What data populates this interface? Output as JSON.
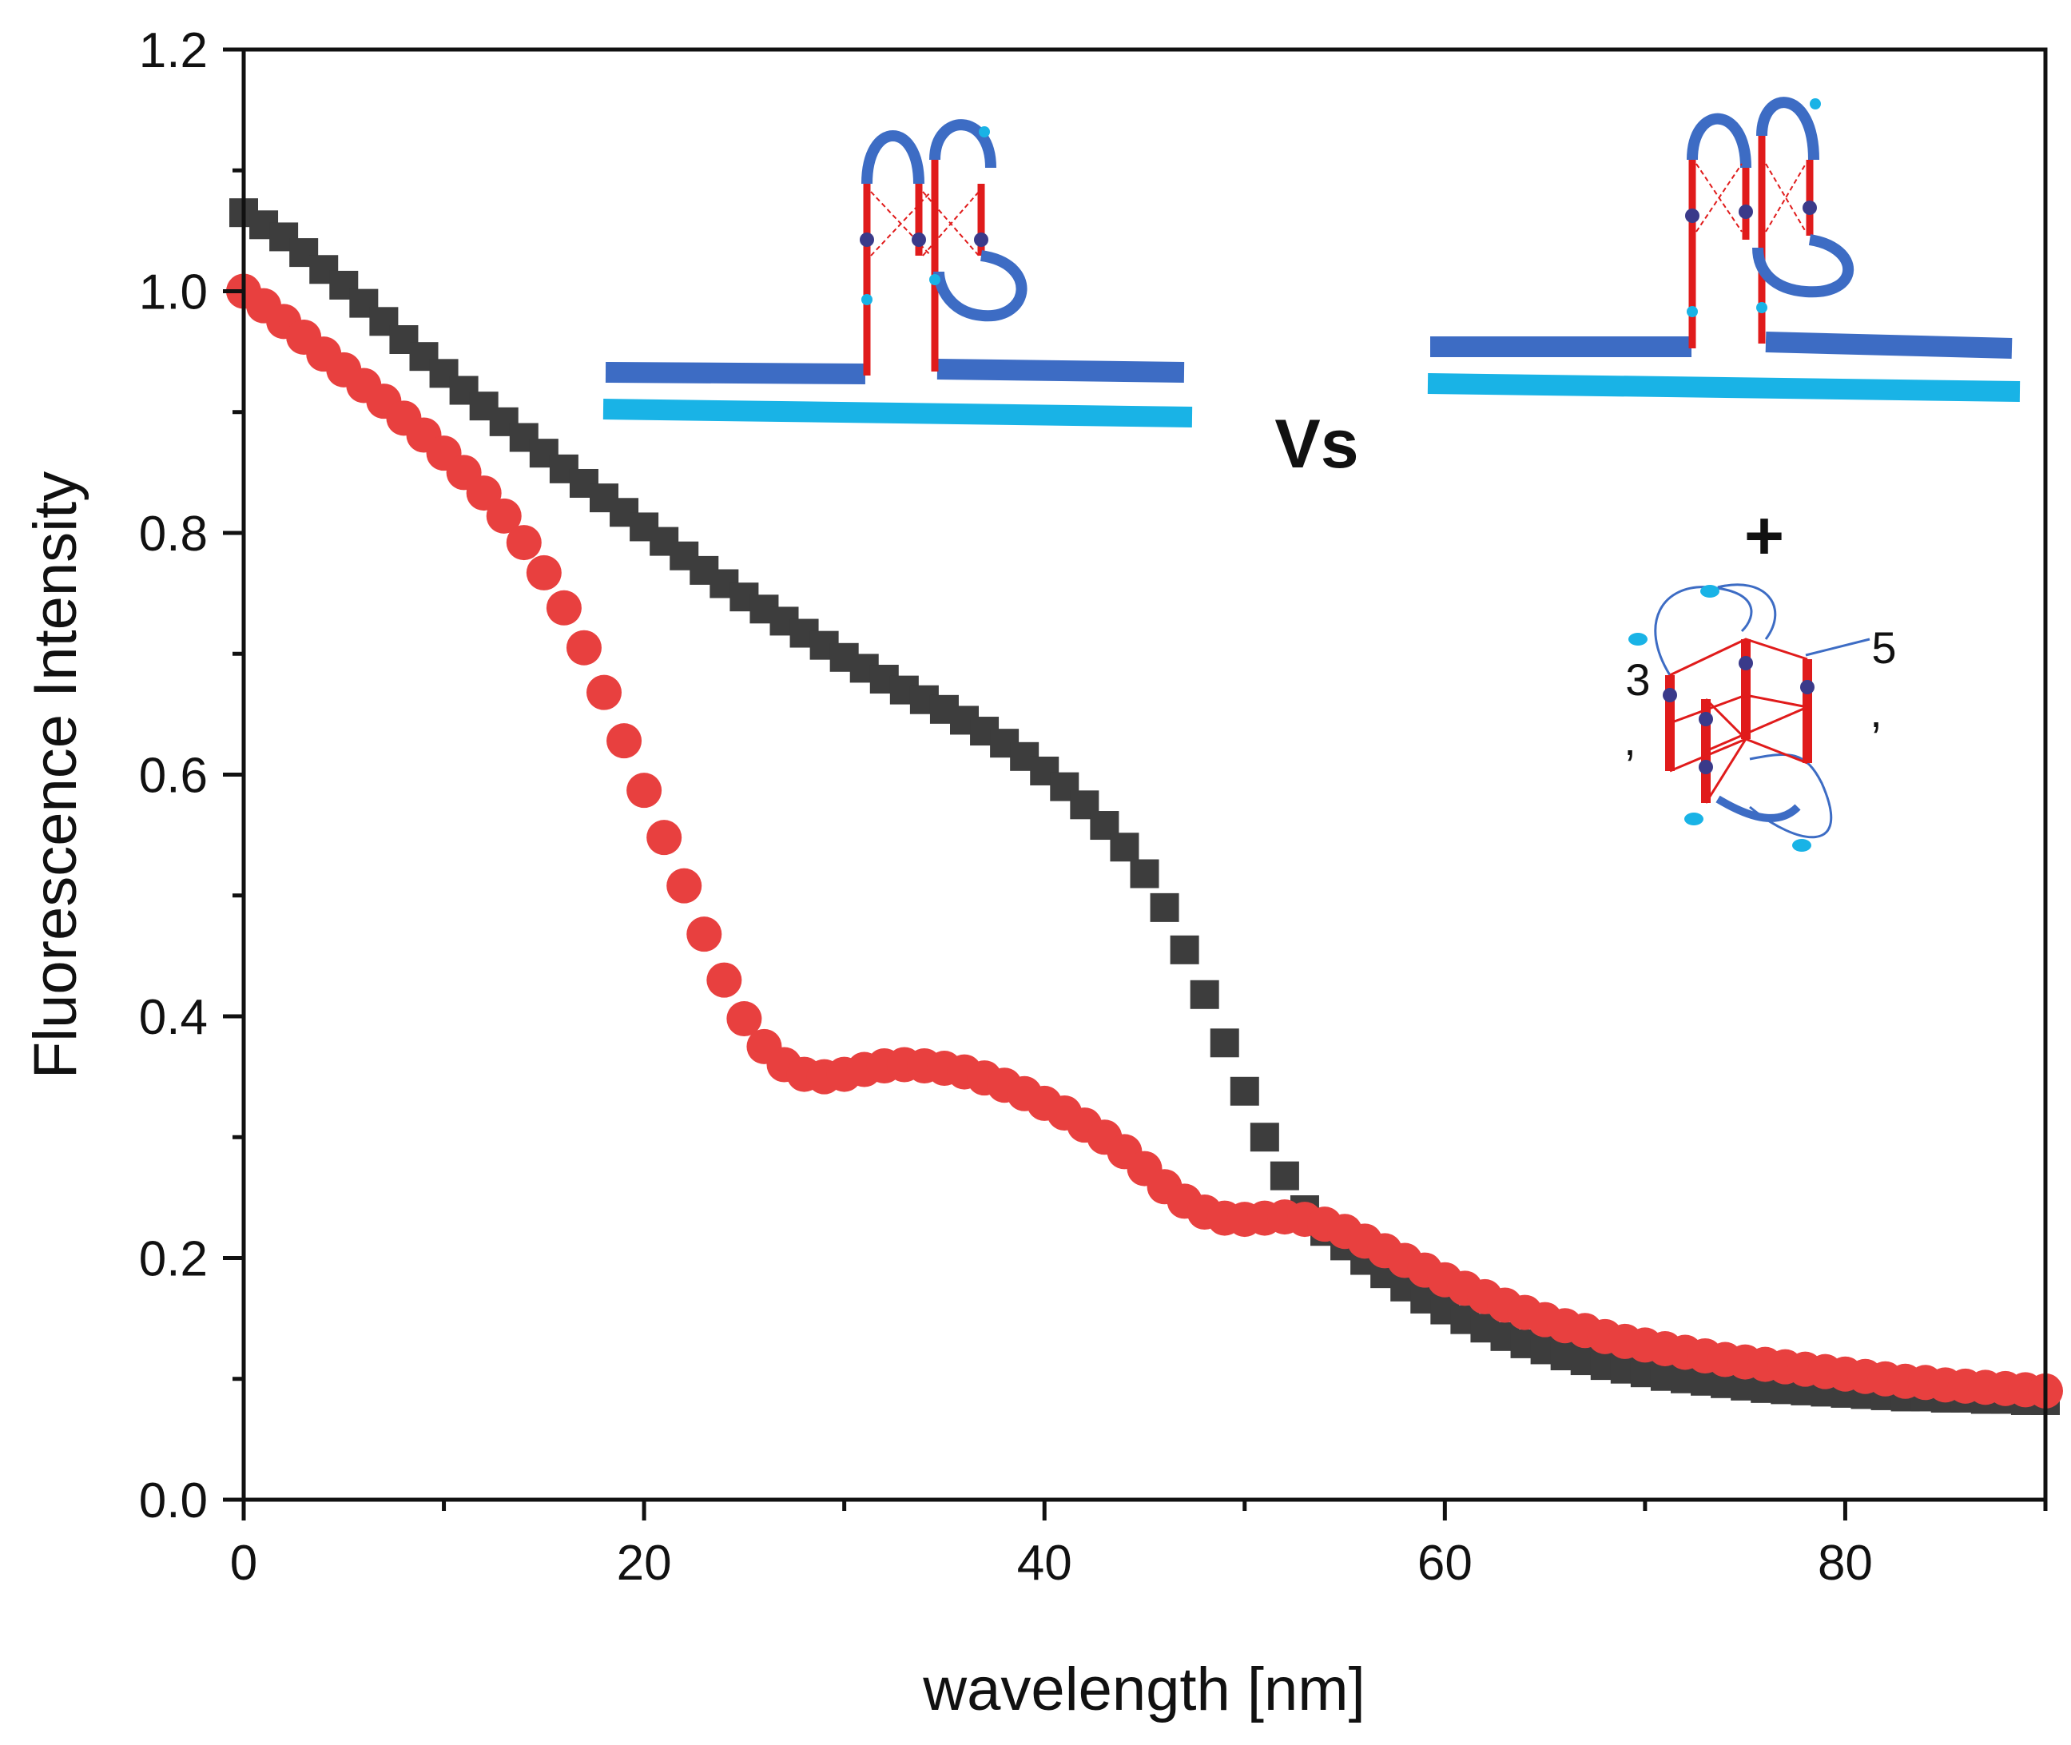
{
  "chart_data": {
    "type": "scatter",
    "xlabel": "wavelength [nm]",
    "ylabel": "Fluorescence Intensity",
    "xlim": [
      0,
      90
    ],
    "ylim": [
      0,
      1.2
    ],
    "xticks": [
      "0",
      "20",
      "40",
      "60",
      "80"
    ],
    "yticks": [
      "0.0",
      "0.2",
      "0.4",
      "0.6",
      "0.8",
      "1.0",
      "1.2"
    ],
    "grid": false,
    "legend": "none",
    "annotations": {
      "vs": "Vs",
      "plus": "+",
      "five_prime": "5",
      "three_prime": "3",
      "comma": ","
    },
    "series": [
      {
        "marker": "square",
        "color": "#3d3d3d",
        "x": [
          0,
          1,
          2,
          3,
          4,
          5,
          6,
          7,
          8,
          9,
          10,
          11,
          12,
          13,
          14,
          15,
          16,
          17,
          18,
          19,
          20,
          21,
          22,
          23,
          24,
          25,
          26,
          27,
          28,
          29,
          30,
          31,
          32,
          33,
          34,
          35,
          36,
          37,
          38,
          39,
          40,
          41,
          42,
          43,
          44,
          45,
          46,
          47,
          48,
          49,
          50,
          51,
          52,
          53,
          54,
          55,
          56,
          57,
          58,
          59,
          60,
          61,
          62,
          63,
          64,
          65,
          66,
          67,
          68,
          69,
          70,
          71,
          72,
          73,
          74,
          75,
          76,
          77,
          78,
          79,
          80,
          81,
          82,
          83,
          84,
          85,
          86,
          87,
          88,
          89,
          90
        ],
        "values": [
          1.065,
          1.055,
          1.045,
          1.032,
          1.018,
          1.005,
          0.99,
          0.975,
          0.96,
          0.946,
          0.932,
          0.918,
          0.905,
          0.892,
          0.879,
          0.866,
          0.853,
          0.841,
          0.829,
          0.817,
          0.805,
          0.793,
          0.781,
          0.769,
          0.758,
          0.747,
          0.737,
          0.727,
          0.717,
          0.707,
          0.697,
          0.688,
          0.679,
          0.67,
          0.662,
          0.654,
          0.645,
          0.636,
          0.626,
          0.615,
          0.603,
          0.59,
          0.575,
          0.558,
          0.54,
          0.518,
          0.49,
          0.455,
          0.418,
          0.378,
          0.338,
          0.3,
          0.268,
          0.24,
          0.222,
          0.21,
          0.198,
          0.187,
          0.176,
          0.166,
          0.157,
          0.149,
          0.142,
          0.135,
          0.129,
          0.124,
          0.119,
          0.115,
          0.111,
          0.108,
          0.105,
          0.102,
          0.1,
          0.098,
          0.096,
          0.094,
          0.092,
          0.091,
          0.09,
          0.089,
          0.088,
          0.087,
          0.086,
          0.085,
          0.085,
          0.084,
          0.084,
          0.083,
          0.083,
          0.082,
          0.082
        ]
      },
      {
        "marker": "circle",
        "color": "#e8403f",
        "x": [
          0,
          1,
          2,
          3,
          4,
          5,
          6,
          7,
          8,
          9,
          10,
          11,
          12,
          13,
          14,
          15,
          16,
          17,
          18,
          19,
          20,
          21,
          22,
          23,
          24,
          25,
          26,
          27,
          28,
          29,
          30,
          31,
          32,
          33,
          34,
          35,
          36,
          37,
          38,
          39,
          40,
          41,
          42,
          43,
          44,
          45,
          46,
          47,
          48,
          49,
          50,
          51,
          52,
          53,
          54,
          55,
          56,
          57,
          58,
          59,
          60,
          61,
          62,
          63,
          64,
          65,
          66,
          67,
          68,
          69,
          70,
          71,
          72,
          73,
          74,
          75,
          76,
          77,
          78,
          79,
          80,
          81,
          82,
          83,
          84,
          85,
          86,
          87,
          88,
          89,
          90
        ],
        "values": [
          1.0,
          0.988,
          0.975,
          0.962,
          0.948,
          0.935,
          0.922,
          0.909,
          0.895,
          0.881,
          0.866,
          0.85,
          0.833,
          0.814,
          0.792,
          0.767,
          0.738,
          0.705,
          0.668,
          0.628,
          0.587,
          0.548,
          0.508,
          0.468,
          0.43,
          0.398,
          0.375,
          0.36,
          0.352,
          0.35,
          0.352,
          0.356,
          0.359,
          0.36,
          0.359,
          0.357,
          0.354,
          0.349,
          0.343,
          0.336,
          0.328,
          0.32,
          0.31,
          0.3,
          0.288,
          0.274,
          0.259,
          0.247,
          0.238,
          0.233,
          0.232,
          0.233,
          0.234,
          0.232,
          0.228,
          0.222,
          0.214,
          0.206,
          0.198,
          0.19,
          0.182,
          0.175,
          0.168,
          0.161,
          0.155,
          0.149,
          0.144,
          0.14,
          0.135,
          0.131,
          0.128,
          0.125,
          0.122,
          0.119,
          0.116,
          0.114,
          0.112,
          0.11,
          0.108,
          0.106,
          0.104,
          0.102,
          0.1,
          0.098,
          0.097,
          0.095,
          0.094,
          0.093,
          0.092,
          0.091,
          0.09
        ]
      }
    ]
  }
}
